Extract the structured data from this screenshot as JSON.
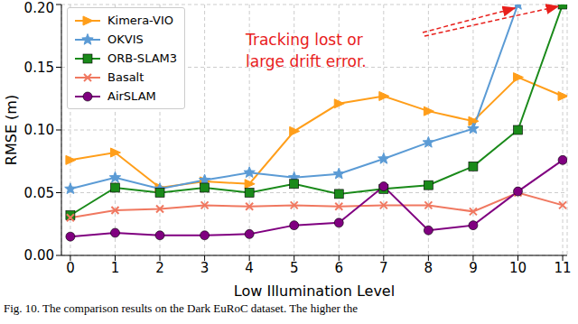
{
  "chart_data": {
    "type": "line",
    "caption": "Fig. 10.  The comparison results on the Dark EuRoC dataset. The higher the",
    "x_label": "Low Illumination Level",
    "y_label": "RMSE (m)",
    "annotation": [
      "Tracking lost or",
      "large drift error."
    ],
    "x": [
      0,
      1,
      2,
      3,
      4,
      5,
      6,
      7,
      8,
      9,
      10,
      11
    ],
    "xlim": [
      -0.2,
      11.1
    ],
    "xticks": [
      0,
      1,
      2,
      3,
      4,
      5,
      6,
      7,
      8,
      9,
      10,
      11
    ],
    "ylim": [
      0,
      0.2
    ],
    "yticks": [
      {
        "value": 0,
        "label": "0.00"
      },
      {
        "value": 0.05,
        "label": "0.05"
      },
      {
        "value": 0.1,
        "label": "0.10"
      },
      {
        "value": 0.15,
        "label": "0.15"
      },
      {
        "value": 0.2,
        "label": "0.20"
      }
    ],
    "grid": true,
    "legend": "upper left",
    "series": [
      {
        "name": "Kimera-VIO",
        "color": "#ff9e1a",
        "marker": "triangle-right",
        "values": [
          0.076,
          0.082,
          0.054,
          0.059,
          0.057,
          0.099,
          0.121,
          0.127,
          0.115,
          0.107,
          0.142,
          0.127
        ]
      },
      {
        "name": "OKVIS",
        "color": "#5b9bd5",
        "marker": "star",
        "values": [
          0.053,
          0.062,
          0.053,
          0.06,
          0.066,
          0.062,
          0.065,
          0.077,
          0.09,
          0.101,
          0.2,
          null
        ]
      },
      {
        "name": "ORB-SLAM3",
        "color": "#1a8a1a",
        "marker": "square",
        "values": [
          0.032,
          0.054,
          0.05,
          0.054,
          0.05,
          0.057,
          0.049,
          0.053,
          0.056,
          0.071,
          0.1,
          0.2
        ]
      },
      {
        "name": "Basalt",
        "color": "#f07860",
        "marker": "x",
        "values": [
          0.03,
          0.036,
          0.037,
          0.04,
          0.039,
          0.04,
          0.039,
          0.04,
          0.04,
          0.035,
          0.05,
          0.04
        ]
      },
      {
        "name": "AirSLAM",
        "color": "#800080",
        "marker": "circle",
        "values": [
          0.015,
          0.018,
          0.016,
          0.016,
          0.017,
          0.024,
          0.026,
          0.055,
          0.02,
          0.024,
          0.051,
          0.076
        ]
      }
    ]
  }
}
